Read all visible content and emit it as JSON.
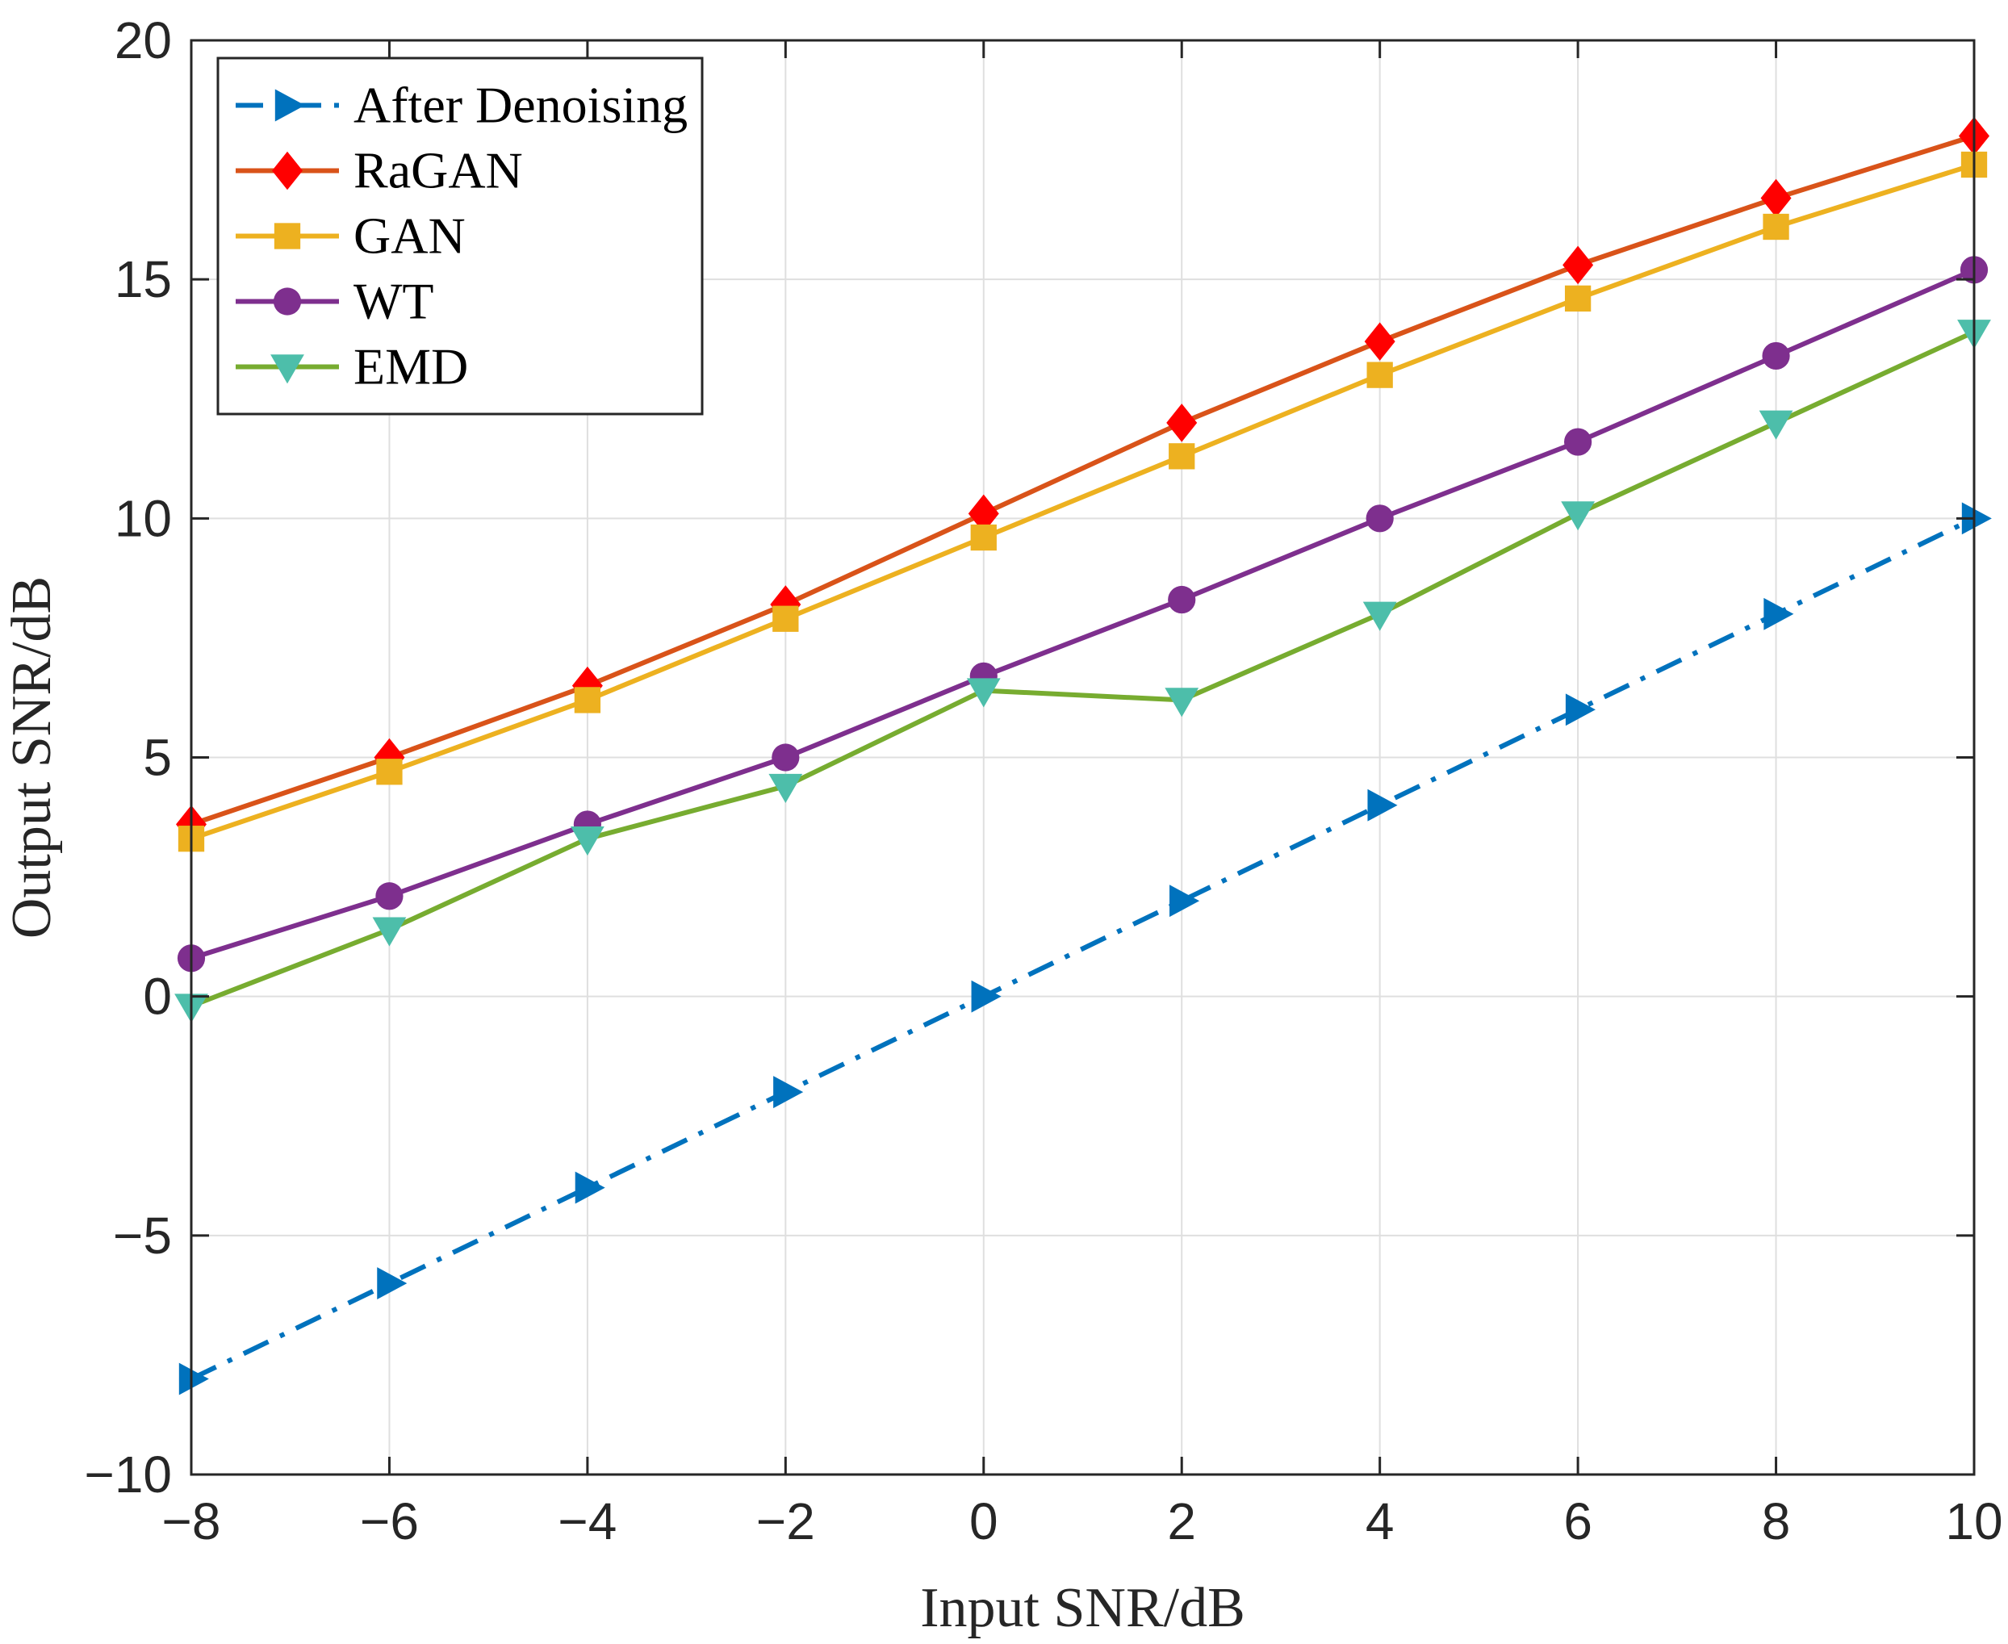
{
  "chart_data": {
    "type": "line",
    "title": "",
    "xlabel": "Input SNR/dB",
    "ylabel": "Output SNR/dB",
    "xlim": [
      -8,
      10
    ],
    "ylim": [
      -10,
      20
    ],
    "grid": true,
    "legend_position": "top-left",
    "x": [
      -8,
      -6,
      -4,
      -2,
      0,
      2,
      4,
      6,
      8,
      10
    ],
    "x_tick_labels": [
      "−8",
      "−6",
      "−4",
      "−2",
      "0",
      "2",
      "4",
      "6",
      "8",
      "10"
    ],
    "y_ticks": [
      -10,
      -5,
      0,
      5,
      10,
      15,
      20
    ],
    "y_tick_labels": [
      "−10",
      "−5",
      "0",
      "5",
      "10",
      "15",
      "20"
    ],
    "series": [
      {
        "name": "After Denoising",
        "color": "#0072BD",
        "marker": "triangle-right",
        "dash": "dashdot",
        "values": [
          -8,
          -6,
          -4,
          -2,
          0,
          2,
          4,
          6,
          8,
          10
        ]
      },
      {
        "name": "RaGAN",
        "color": "#D95319",
        "marker": "diamond",
        "marker_color": "#FF0000",
        "dash": "solid",
        "values": [
          3.6,
          5.0,
          6.5,
          8.2,
          10.1,
          12.0,
          13.7,
          15.3,
          16.7,
          18.0
        ]
      },
      {
        "name": "GAN",
        "color": "#EDB120",
        "marker": "square",
        "dash": "solid",
        "values": [
          3.3,
          4.7,
          6.2,
          7.9,
          9.6,
          11.3,
          13.0,
          14.6,
          16.1,
          17.4
        ]
      },
      {
        "name": "WT",
        "color": "#7E2F8E",
        "marker": "circle",
        "dash": "solid",
        "values": [
          0.8,
          2.1,
          3.6,
          5.0,
          6.7,
          8.3,
          10.0,
          11.6,
          13.4,
          15.2
        ]
      },
      {
        "name": "EMD",
        "color": "#77AC30",
        "marker": "triangle-down",
        "marker_color": "#4DBEAA",
        "dash": "solid",
        "values": [
          -0.2,
          1.4,
          3.3,
          4.4,
          6.4,
          6.2,
          8.0,
          10.1,
          12.0,
          13.9
        ]
      }
    ]
  }
}
